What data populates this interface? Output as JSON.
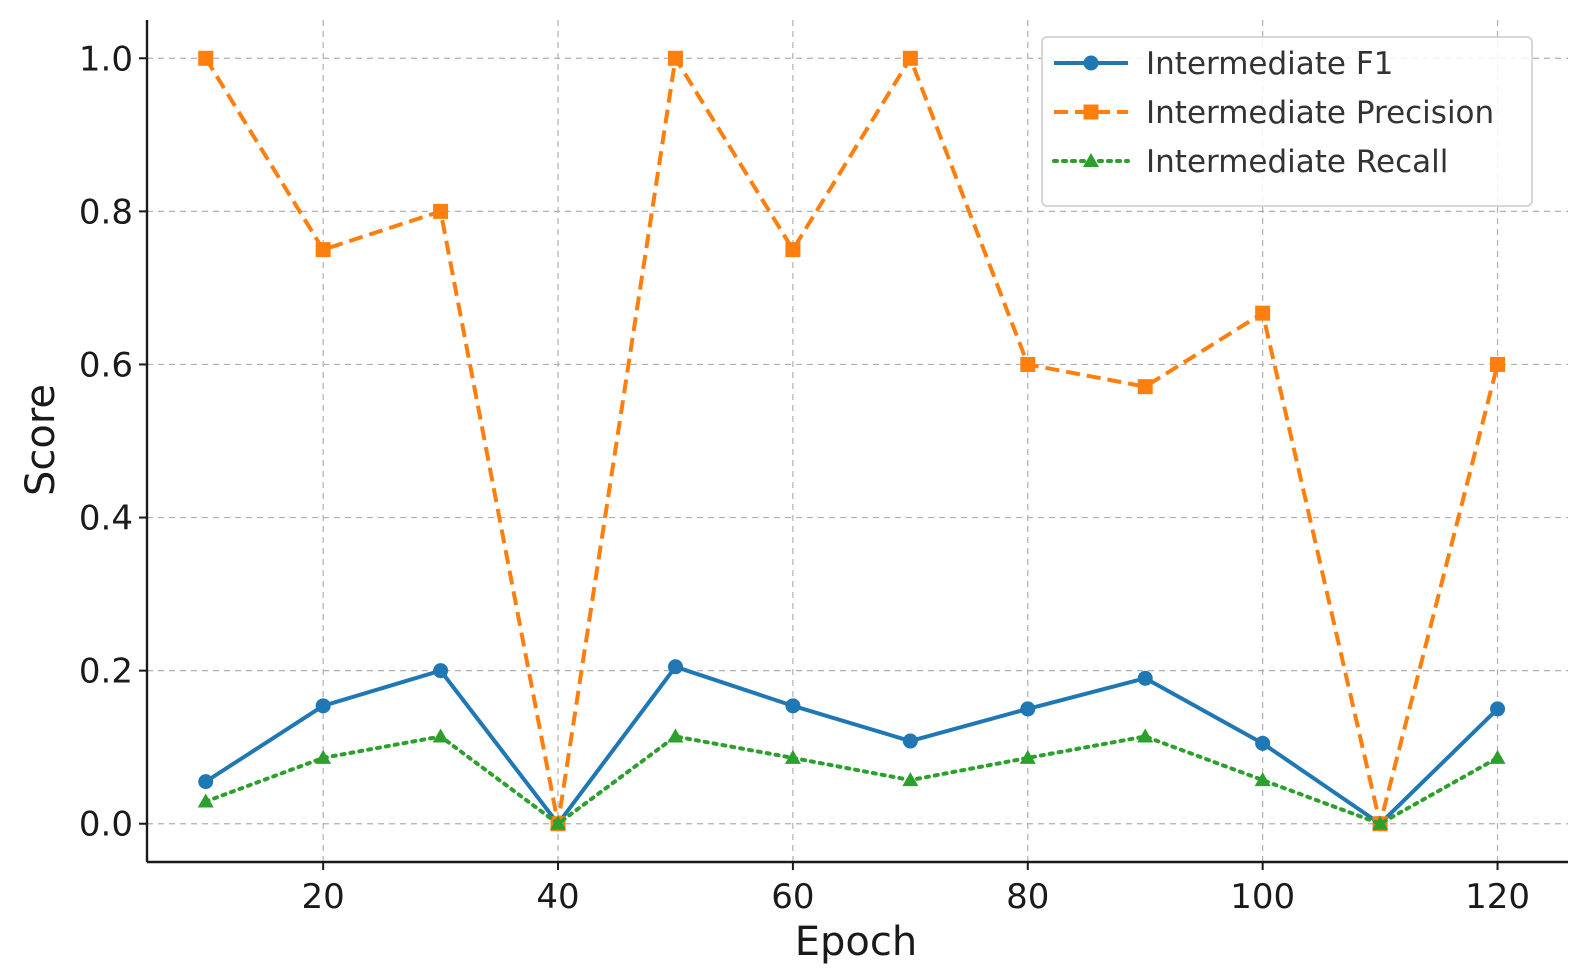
{
  "chart_data": {
    "type": "line",
    "title": "",
    "xlabel": "Epoch",
    "ylabel": "Score",
    "x": [
      10,
      20,
      30,
      40,
      50,
      60,
      70,
      80,
      90,
      100,
      110,
      120
    ],
    "xlim": [
      5,
      126
    ],
    "ylim": [
      -0.05,
      1.05
    ],
    "xticks": [
      20,
      40,
      60,
      80,
      100,
      120
    ],
    "yticks": [
      0.0,
      0.2,
      0.4,
      0.6,
      0.8,
      1.0
    ],
    "ytick_labels": [
      "0.0",
      "0.2",
      "0.4",
      "0.6",
      "0.8",
      "1.0"
    ],
    "grid": true,
    "legend_position": "top-right",
    "series": [
      {
        "name": "Intermediate F1",
        "color": "#1f77b4",
        "line_style": "solid",
        "marker": "circle",
        "values": [
          0.055,
          0.154,
          0.2,
          0.0,
          0.205,
          0.154,
          0.108,
          0.15,
          0.19,
          0.105,
          0.0,
          0.15
        ]
      },
      {
        "name": "Intermediate Precision",
        "color": "#ff7f0e",
        "line_style": "dashed",
        "marker": "square",
        "values": [
          1.0,
          0.75,
          0.8,
          0.0,
          1.0,
          0.75,
          1.0,
          0.6,
          0.571,
          0.667,
          0.0,
          0.6
        ]
      },
      {
        "name": "Intermediate Recall",
        "color": "#2ca02c",
        "line_style": "dotted",
        "marker": "triangle",
        "values": [
          0.029,
          0.086,
          0.114,
          0.0,
          0.114,
          0.086,
          0.057,
          0.086,
          0.114,
          0.057,
          0.0,
          0.086
        ]
      }
    ]
  }
}
